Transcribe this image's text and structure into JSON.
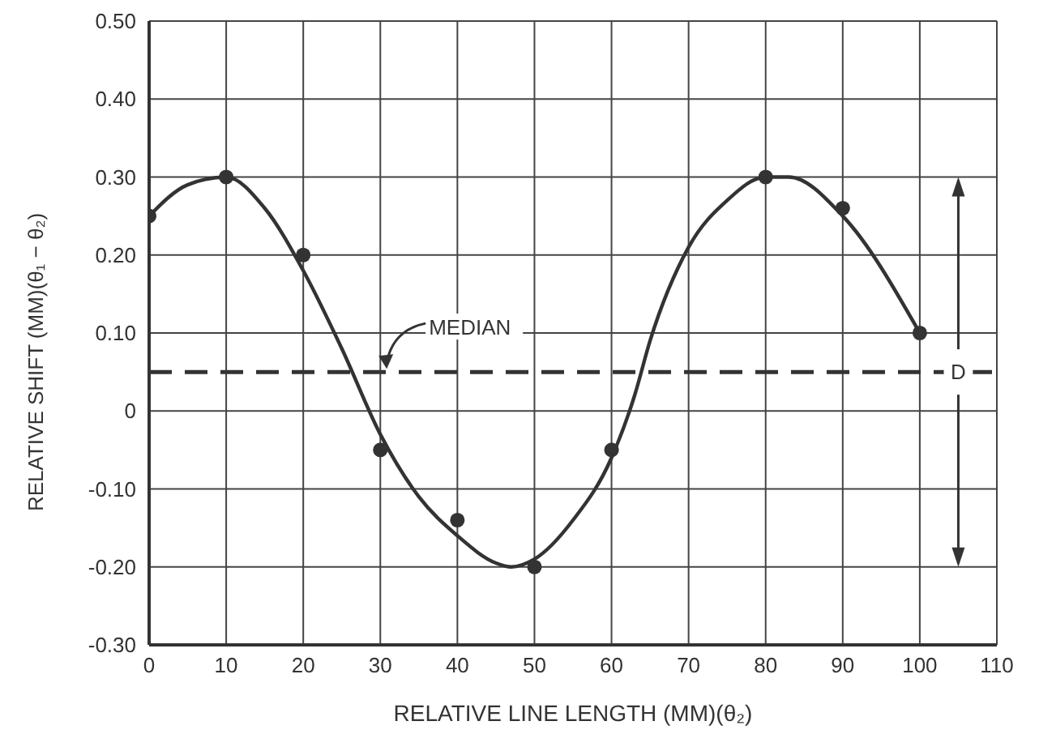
{
  "chart_data": {
    "type": "scatter",
    "xlabel": "RELATIVE LINE LENGTH (MM)(θ₂)",
    "ylabel": "RELATIVE SHIFT (MM)(θ₁ − θ₂)",
    "xlim": [
      0,
      110
    ],
    "xticks": [
      0,
      10,
      20,
      30,
      40,
      50,
      60,
      70,
      80,
      90,
      100,
      110
    ],
    "ylim": [
      -0.3,
      0.5
    ],
    "yticks": [
      {
        "value": -0.3,
        "label": "-0.30"
      },
      {
        "value": -0.2,
        "label": "-0.20"
      },
      {
        "value": -0.1,
        "label": "-0.10"
      },
      0,
      {
        "value": 0.1,
        "label": "0.10"
      },
      {
        "value": 0.2,
        "label": "0.20"
      },
      {
        "value": 0.3,
        "label": "0.30"
      },
      {
        "value": 0.4,
        "label": "0.40"
      },
      {
        "value": 0.5,
        "label": "0.50"
      }
    ],
    "grid": true,
    "marker": "circle",
    "series": [
      {
        "color": "#333333",
        "x": [
          0,
          10,
          20,
          30,
          40,
          50,
          60,
          80,
          90,
          100
        ],
        "values": [
          0.25,
          0.3,
          0.2,
          -0.05,
          -0.14,
          -0.2,
          -0.05,
          0.3,
          0.26,
          0.1
        ]
      },
      {
        "type": "line",
        "color": "#333333",
        "marker": "none",
        "line_style": "solid",
        "x": [
          0,
          5,
          10,
          15,
          20,
          25,
          30,
          35,
          40,
          45,
          47,
          50,
          55,
          60,
          63,
          65,
          70,
          75,
          80,
          83,
          90,
          100
        ],
        "values": [
          0.25,
          0.29,
          0.3,
          0.26,
          0.18,
          0.08,
          -0.03,
          -0.11,
          -0.16,
          -0.195,
          -0.2,
          -0.19,
          -0.14,
          -0.06,
          0.02,
          0.09,
          0.21,
          0.27,
          0.3,
          0.3,
          0.25,
          0.1
        ]
      }
    ],
    "ref_lines": [
      {
        "axis": "y",
        "value": 0.05,
        "label": "MEDIAN",
        "line_style": "dashed",
        "color": "#333333"
      }
    ],
    "annotations": [
      {
        "text": "D",
        "x": 105,
        "y": 0.05
      }
    ]
  }
}
